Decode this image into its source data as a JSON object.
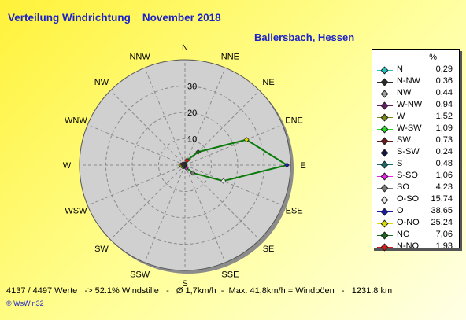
{
  "chart_data": {
    "type": "radar",
    "title": "Verteilung Windrichtung    November 2018",
    "subtitle": "Ballersbach, Hessen",
    "legend_unit": "%",
    "radial_ticks": [
      10,
      20,
      30
    ],
    "rmax": 40,
    "directions": [
      "N",
      "NNE",
      "NE",
      "ENE",
      "E",
      "ESE",
      "SE",
      "SSE",
      "S",
      "SSW",
      "SW",
      "WSW",
      "W",
      "WNW",
      "NW",
      "NNW"
    ],
    "values": [
      0.29,
      1.93,
      7.06,
      25.24,
      38.65,
      15.74,
      4.23,
      1.06,
      0.48,
      0.24,
      0.73,
      1.09,
      1.52,
      0.94,
      0.44,
      0.36
    ],
    "series_color": "#0a7a0a",
    "legend": [
      {
        "label": "N",
        "value": "0,29",
        "color": "#22c4c4"
      },
      {
        "label": "N-NW",
        "value": "0,36",
        "color": "#2a2a2a"
      },
      {
        "label": "NW",
        "value": "0,44",
        "color": "#a0a0a0"
      },
      {
        "label": "W-NW",
        "value": "0,94",
        "color": "#6a1a6a"
      },
      {
        "label": "W",
        "value": "1,52",
        "color": "#7a8a10"
      },
      {
        "label": "W-SW",
        "value": "1,09",
        "color": "#22dd22"
      },
      {
        "label": "SW",
        "value": "0,73",
        "color": "#6a1a1a"
      },
      {
        "label": "S-SW",
        "value": "0,24",
        "color": "#12124a"
      },
      {
        "label": "S",
        "value": "0,48",
        "color": "#1a6a6a"
      },
      {
        "label": "S-SO",
        "value": "1,06",
        "color": "#ee22ee"
      },
      {
        "label": "SO",
        "value": "4,23",
        "color": "#7a7a7a"
      },
      {
        "label": "O-SO",
        "value": "15,74",
        "color": "#e8e8e8"
      },
      {
        "label": "O",
        "value": "38,65",
        "color": "#1a1aaa"
      },
      {
        "label": "O-NO",
        "value": "25,24",
        "color": "#dddd00"
      },
      {
        "label": "NO",
        "value": "7,06",
        "color": "#1a6a1a"
      },
      {
        "label": "N-NO",
        "value": "1,93",
        "color": "#dd1a1a"
      }
    ],
    "footer": "4137 / 4497 Werte   -> 52.1% Windstille   -   Ø 1,7km/h  -  Max. 41,8km/h = Windböen   -   1231.8 km",
    "brand": "© WsWin32"
  }
}
